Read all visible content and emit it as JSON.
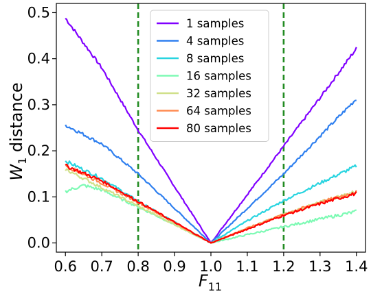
{
  "chart_data": {
    "type": "line",
    "xlabel_base": "F",
    "xlabel_sub": "11",
    "ylabel_base": "W",
    "ylabel_sub": "1",
    "ylabel_rest": " distance",
    "xlim": [
      0.575,
      1.425
    ],
    "ylim": [
      -0.02,
      0.52
    ],
    "xticks": [
      0.6,
      0.7,
      0.8,
      0.9,
      1.0,
      1.1,
      1.2,
      1.3,
      1.4
    ],
    "xtick_labels": [
      "0.6",
      "0.7",
      "0.8",
      "0.9",
      "1.0",
      "1.1",
      "1.2",
      "1.3",
      "1.4"
    ],
    "yticks": [
      0.0,
      0.1,
      0.2,
      0.3,
      0.4,
      0.5
    ],
    "ytick_labels": [
      "0.0",
      "0.1",
      "0.2",
      "0.3",
      "0.4",
      "0.5"
    ],
    "grid": false,
    "legend_position": "top-center",
    "vlines": [
      {
        "x": 0.8,
        "color": "#228b22",
        "style": "dashed"
      },
      {
        "x": 1.2,
        "color": "#228b22",
        "style": "dashed"
      }
    ],
    "series": [
      {
        "name": "1 samples",
        "color": "#8000ff",
        "x": [
          0.6,
          0.7,
          0.8,
          0.9,
          1.0,
          1.1,
          1.2,
          1.3,
          1.4
        ],
        "y": [
          0.488,
          0.38,
          0.245,
          0.122,
          0.0,
          0.105,
          0.21,
          0.315,
          0.422
        ]
      },
      {
        "name": "4 samples",
        "color": "#2e7fef",
        "x": [
          0.6,
          0.7,
          0.8,
          0.9,
          1.0,
          1.1,
          1.2,
          1.3,
          1.4
        ],
        "y": [
          0.256,
          0.215,
          0.15,
          0.075,
          0.0,
          0.075,
          0.15,
          0.232,
          0.313
        ]
      },
      {
        "name": "8 samples",
        "color": "#28d4e0",
        "x": [
          0.6,
          0.7,
          0.8,
          0.9,
          1.0,
          1.1,
          1.2,
          1.3,
          1.4
        ],
        "y": [
          0.178,
          0.14,
          0.09,
          0.045,
          0.0,
          0.048,
          0.092,
          0.13,
          0.167
        ]
      },
      {
        "name": "16 samples",
        "color": "#7dfab4",
        "x": [
          0.6,
          0.65,
          0.7,
          0.8,
          0.9,
          1.0,
          1.1,
          1.2,
          1.3,
          1.4
        ],
        "y": [
          0.112,
          0.125,
          0.115,
          0.078,
          0.04,
          0.0,
          0.018,
          0.035,
          0.052,
          0.068
        ]
      },
      {
        "name": "32 samples",
        "color": "#d0e08a",
        "x": [
          0.6,
          0.7,
          0.8,
          0.9,
          1.0,
          1.1,
          1.2,
          1.3,
          1.4
        ],
        "y": [
          0.16,
          0.12,
          0.08,
          0.04,
          0.0,
          0.032,
          0.062,
          0.088,
          0.112
        ]
      },
      {
        "name": "64 samples",
        "color": "#ff8a50",
        "x": [
          0.6,
          0.7,
          0.8,
          0.9,
          1.0,
          1.1,
          1.2,
          1.3,
          1.4
        ],
        "y": [
          0.168,
          0.13,
          0.088,
          0.044,
          0.0,
          0.032,
          0.062,
          0.088,
          0.111
        ]
      },
      {
        "name": "80 samples",
        "color": "#ff0000",
        "x": [
          0.6,
          0.7,
          0.8,
          0.9,
          1.0,
          1.1,
          1.2,
          1.3,
          1.4
        ],
        "y": [
          0.168,
          0.135,
          0.09,
          0.045,
          0.0,
          0.03,
          0.06,
          0.085,
          0.108
        ]
      }
    ]
  }
}
